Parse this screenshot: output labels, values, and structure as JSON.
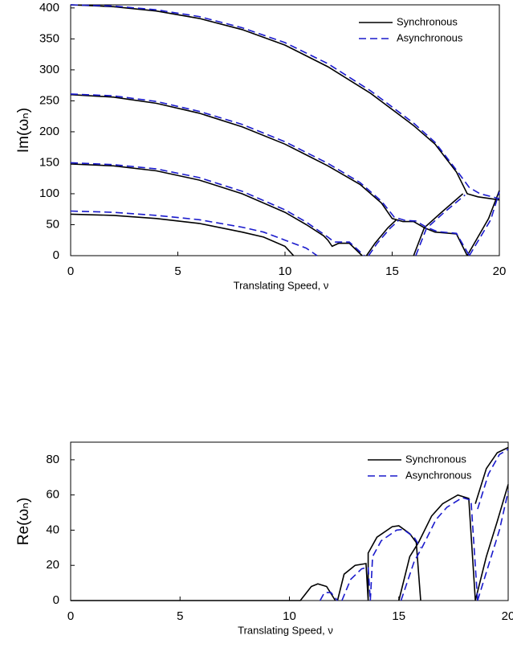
{
  "chart_data": [
    {
      "type": "line",
      "xlabel": "Translating Speed, ν",
      "ylabel": "Im(ωₙ)",
      "xlim": [
        0,
        20
      ],
      "ylim": [
        0,
        405
      ],
      "xticks": [
        0,
        5,
        10,
        15,
        20
      ],
      "yticks": [
        0,
        50,
        100,
        150,
        200,
        250,
        300,
        350,
        400
      ],
      "legend": "upper right",
      "series": [
        {
          "name": "Synchronous",
          "color": "#000000",
          "linestyle": "solid",
          "x": [
            0,
            2,
            4,
            6,
            8,
            9,
            10,
            10.4,
            null,
            0,
            2,
            4,
            6,
            8,
            10,
            11,
            11.8,
            12,
            12.2,
            12.5,
            13,
            13.6,
            null,
            0,
            2,
            4,
            6,
            8,
            10,
            12,
            13.5,
            14.5,
            15,
            15.5,
            16,
            16.5,
            17,
            18,
            18.5,
            null,
            0,
            2,
            4,
            6,
            8,
            10,
            12,
            14,
            16,
            17,
            18,
            18.5,
            19,
            20,
            null,
            13.8,
            14.2,
            14.8,
            15.2,
            null,
            16,
            16.5,
            17.3,
            18.3,
            null,
            18.5,
            19.5,
            20
          ],
          "values": [
            67,
            65,
            60,
            52,
            38,
            30,
            15,
            0,
            null,
            148,
            145,
            137,
            122,
            100,
            70,
            50,
            32,
            25,
            15,
            20,
            20,
            0,
            null,
            260,
            256,
            246,
            230,
            208,
            180,
            145,
            115,
            85,
            60,
            55,
            55,
            45,
            38,
            35,
            0,
            null,
            405,
            402,
            395,
            383,
            365,
            340,
            305,
            262,
            210,
            180,
            135,
            100,
            95,
            90,
            null,
            0,
            20,
            45,
            58,
            null,
            0,
            45,
            70,
            100,
            null,
            0,
            60,
            105
          ]
        },
        {
          "name": "Asynchronous",
          "color": "#1a1acc",
          "linestyle": "dashed",
          "x": [
            0,
            2,
            4,
            6,
            8,
            9,
            10,
            11,
            11.5,
            null,
            0,
            2,
            4,
            6,
            8,
            10,
            11,
            12,
            12.3,
            12.6,
            13,
            13.7,
            null,
            0,
            2,
            4,
            6,
            8,
            10,
            12,
            13.5,
            14.5,
            15.1,
            15.6,
            16.1,
            16.6,
            17.1,
            18,
            18.6,
            null,
            0,
            2,
            4,
            6,
            8,
            10,
            12,
            14,
            16,
            17,
            18,
            18.6,
            19.1,
            20,
            null,
            13.9,
            14.3,
            14.9,
            15.3,
            null,
            16.1,
            16.6,
            17.4,
            18.4,
            null,
            18.6,
            19.6,
            20
          ],
          "values": [
            72,
            70,
            65,
            58,
            46,
            38,
            25,
            12,
            0,
            null,
            150,
            147,
            140,
            126,
            104,
            74,
            54,
            30,
            22,
            22,
            22,
            0,
            null,
            261,
            258,
            249,
            233,
            212,
            184,
            149,
            118,
            88,
            62,
            57,
            56,
            46,
            39,
            36,
            0,
            null,
            405,
            403,
            397,
            386,
            368,
            344,
            310,
            266,
            214,
            183,
            138,
            110,
            100,
            92,
            null,
            0,
            20,
            44,
            57,
            null,
            0,
            44,
            69,
            98,
            null,
            0,
            58,
            103
          ]
        }
      ]
    },
    {
      "type": "line",
      "xlabel": "Translating Speed, ν",
      "ylabel": "Re(ωₙ)",
      "xlim": [
        0,
        20
      ],
      "ylim": [
        0,
        90
      ],
      "xticks": [
        0,
        5,
        10,
        15,
        20
      ],
      "yticks": [
        0,
        20,
        40,
        60,
        80
      ],
      "legend": "upper right",
      "series": [
        {
          "name": "Synchronous",
          "color": "#000000",
          "linestyle": "solid",
          "x": [
            0,
            10.5,
            11,
            11.3,
            11.7,
            12.1,
            null,
            12.2,
            12.5,
            13,
            13.5,
            13.6,
            null,
            13.6,
            13.6,
            14,
            14.7,
            15,
            15.5,
            15.8,
            16,
            null,
            15,
            15.5,
            15.9,
            16.5,
            17,
            17.7,
            18.2,
            18.5,
            null,
            18.5,
            19,
            19.5,
            20,
            null,
            18.5,
            19,
            19.5,
            20
          ],
          "values": [
            0,
            0,
            8,
            9.5,
            8,
            0,
            null,
            0,
            15,
            20,
            21,
            0,
            null,
            0,
            27,
            36,
            42,
            42.5,
            38,
            33,
            0,
            null,
            0,
            25,
            33,
            48,
            55,
            60,
            58,
            0,
            null,
            55,
            75,
            84,
            87,
            null,
            0,
            25,
            45,
            66
          ]
        },
        {
          "name": "Asynchronous",
          "color": "#1a1acc",
          "linestyle": "dashed",
          "x": [
            11.4,
            11.6,
            11.9,
            12.2,
            null,
            12.4,
            12.8,
            13.3,
            13.6,
            13.7,
            null,
            13.7,
            13.8,
            14.2,
            14.9,
            15.2,
            15.7,
            16,
            null,
            15.1,
            15.7,
            16.1,
            16.7,
            17.2,
            17.9,
            18.3,
            18.6,
            null,
            18.6,
            19.1,
            19.6,
            20,
            null,
            18.6,
            19.1,
            19.6,
            20
          ],
          "values": [
            0,
            4.5,
            4.5,
            0,
            null,
            0,
            12,
            18,
            19,
            0,
            null,
            0,
            25,
            34,
            40,
            40.5,
            36,
            30,
            null,
            0,
            22,
            31,
            46,
            53,
            58.5,
            57,
            0,
            null,
            52,
            72,
            83,
            86,
            null,
            0,
            20,
            40,
            62
          ]
        }
      ]
    }
  ]
}
